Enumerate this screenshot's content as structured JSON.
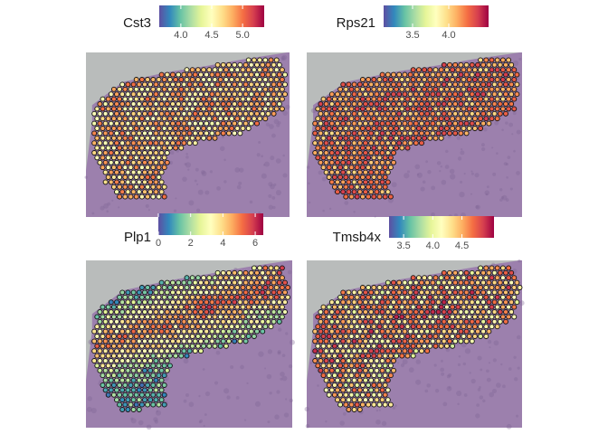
{
  "colorscale": [
    "#5E4FA2",
    "#3288BD",
    "#66C2A5",
    "#ABDDA4",
    "#E6F598",
    "#FFFFBF",
    "#FEE08B",
    "#FDAE61",
    "#F46D43",
    "#D53E4F",
    "#9E0142"
  ],
  "tissue_colors": {
    "background": "#b9bcbb",
    "tissue": "#9c80ad",
    "tissue_dark": "#7f6396",
    "spot_outline": "#111111"
  },
  "chart_data": [
    {
      "type": "spatial-feature-plot",
      "legend_title": "Cst3",
      "scale_range": [
        3.65,
        5.35
      ],
      "ticks": [
        {
          "value": 4.0,
          "label": "4.0"
        },
        {
          "value": 4.5,
          "label": "4.5"
        },
        {
          "value": 5.0,
          "label": "5.0"
        }
      ],
      "pattern": "uniform-mid"
    },
    {
      "type": "spatial-feature-plot",
      "legend_title": "Rps21",
      "scale_range": [
        3.1,
        4.55
      ],
      "ticks": [
        {
          "value": 3.5,
          "label": "3.5"
        },
        {
          "value": 4.0,
          "label": "4.0"
        }
      ],
      "pattern": "uniform-high"
    },
    {
      "type": "spatial-feature-plot",
      "legend_title": "Plp1",
      "scale_range": [
        0,
        6.5
      ],
      "ticks": [
        {
          "value": 0,
          "label": "0"
        },
        {
          "value": 2,
          "label": "2"
        },
        {
          "value": 4,
          "label": "4"
        },
        {
          "value": 6,
          "label": "6"
        }
      ],
      "pattern": "low-left-high-edge"
    },
    {
      "type": "spatial-feature-plot",
      "legend_title": "Tmsb4x",
      "scale_range": [
        3.25,
        5.05
      ],
      "ticks": [
        {
          "value": 3.5,
          "label": "3.5"
        },
        {
          "value": 4.0,
          "label": "4.0"
        },
        {
          "value": 4.5,
          "label": "4.5"
        }
      ],
      "pattern": "mixed"
    }
  ]
}
